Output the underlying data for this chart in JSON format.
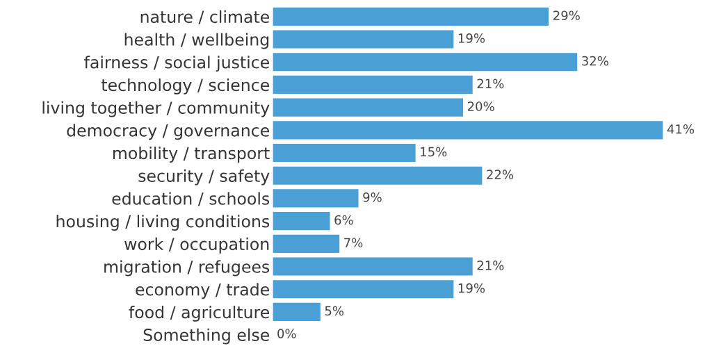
{
  "chart_data": {
    "type": "bar",
    "orientation": "horizontal",
    "categories": [
      "nature / climate",
      "health / wellbeing",
      "fairness / social justice",
      "technology / science",
      "living together / community",
      "democracy / governance",
      "mobility / transport",
      "security / safety",
      "education / schools",
      "housing / living conditions",
      "work / occupation",
      "migration / refugees",
      "economy / trade",
      "food / agriculture",
      "Something else"
    ],
    "values": [
      29,
      19,
      32,
      21,
      20,
      41,
      15,
      22,
      9,
      6,
      7,
      21,
      19,
      5,
      0
    ],
    "value_labels": [
      "29%",
      "19%",
      "32%",
      "21%",
      "20%",
      "41%",
      "15%",
      "22%",
      "9%",
      "6%",
      "7%",
      "21%",
      "19%",
      "5%",
      "0%"
    ],
    "color": "#4a9fd4",
    "grid": false,
    "legend": false
  }
}
